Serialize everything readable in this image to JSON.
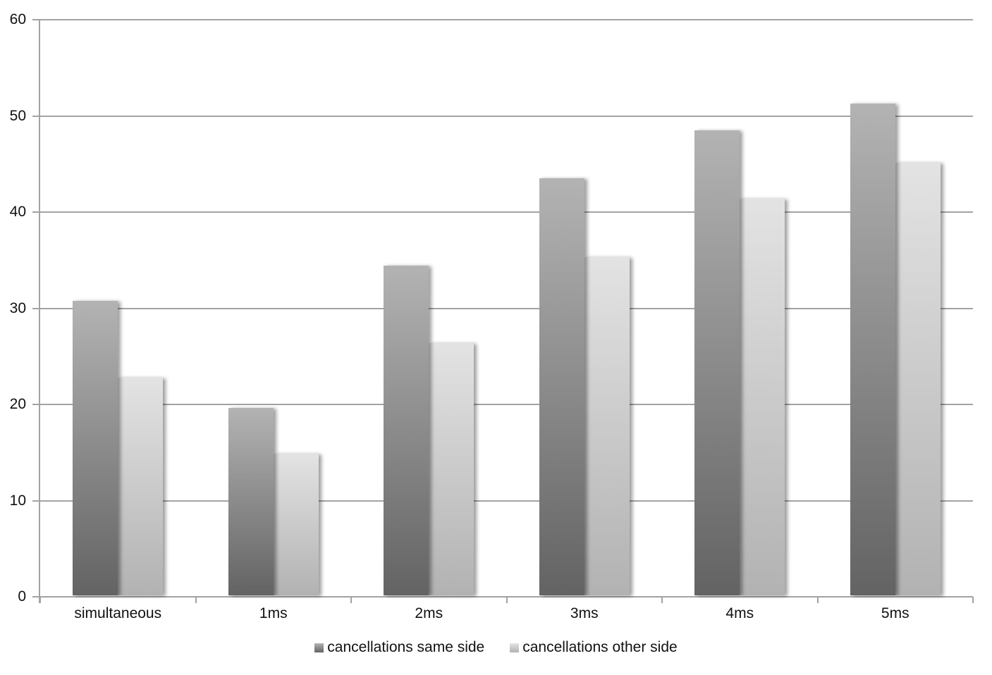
{
  "chart_data": {
    "type": "bar",
    "title": "",
    "xlabel": "",
    "ylabel": "",
    "categories": [
      "simultaneous",
      "1ms",
      "2ms",
      "3ms",
      "4ms",
      "5ms"
    ],
    "series": [
      {
        "name": "cancellations same side",
        "values": [
          30.8,
          19.6,
          34.4,
          43.5,
          48.5,
          51.3
        ],
        "color_top": "#b3b3b3",
        "color_bottom": "#636363"
      },
      {
        "name": "cancellations other side",
        "values": [
          22.8,
          14.9,
          26.4,
          35.3,
          41.4,
          45.1
        ],
        "color_top": "#e3e3e3",
        "color_bottom": "#b2b2b2"
      }
    ],
    "ylim": [
      0,
      60
    ],
    "yticks": [
      0,
      10,
      20,
      30,
      40,
      50,
      60
    ],
    "grid": true,
    "legend_position": "bottom"
  },
  "colors": {
    "gridline": "#a3a3a3",
    "axis": "#a3a3a3",
    "text": "#111111",
    "background": "#ffffff"
  }
}
